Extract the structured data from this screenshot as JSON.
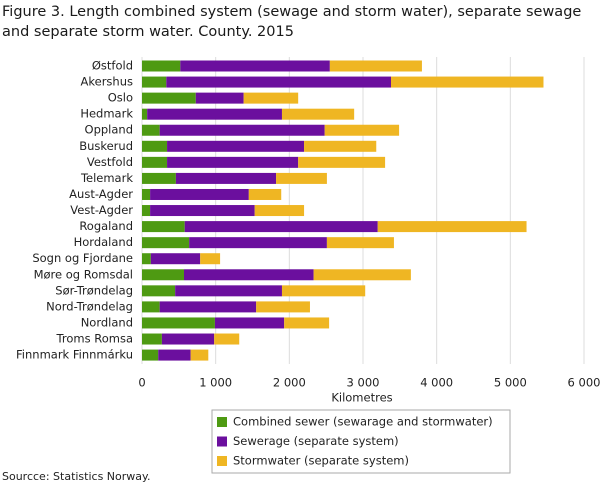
{
  "chart_data": {
    "type": "stacked-bar-horizontal",
    "title": "Figure 3. Length combined system (sewage and storm water), separate sewage and separate storm water. County. 2015",
    "categories": [
      "Østfold",
      "Akershus",
      "Oslo",
      "Hedmark",
      "Oppland",
      "Buskerud",
      "Vestfold",
      "Telemark",
      "Aust-Agder",
      "Vest-Agder",
      "Rogaland",
      "Hordaland",
      "Sogn og Fjordane",
      "Møre og Romsdal",
      "Sør-Trøndelag",
      "Nord-Trøndelag",
      "Nordland",
      "Troms Romsa",
      "Finnmark Finnmárku"
    ],
    "series": [
      {
        "name": "Combined sewer (sewarage and stormwater)",
        "color": "#4e9a12",
        "values": [
          520,
          330,
          730,
          70,
          240,
          340,
          340,
          460,
          110,
          110,
          580,
          640,
          120,
          570,
          450,
          240,
          990,
          270,
          220
        ]
      },
      {
        "name": "Sewerage (separate system)",
        "color": "#6b0f9e",
        "values": [
          2030,
          3050,
          650,
          1830,
          2240,
          1860,
          1780,
          1360,
          1340,
          1420,
          2620,
          1870,
          670,
          1760,
          1450,
          1310,
          940,
          710,
          440
        ]
      },
      {
        "name": "Stormwater (separate system)",
        "color": "#efb623",
        "values": [
          1250,
          2070,
          740,
          980,
          1010,
          980,
          1180,
          690,
          440,
          670,
          2020,
          910,
          270,
          1320,
          1130,
          730,
          610,
          340,
          240
        ]
      }
    ],
    "xlabel": "Kilometres",
    "xlim": [
      0,
      6000
    ],
    "xticks": [
      0,
      {
        "value": 1000,
        "label": "1 000"
      },
      {
        "value": 2000,
        "label": "2 000"
      },
      {
        "value": 3000,
        "label": "3 000"
      },
      {
        "value": 4000,
        "label": "4 000"
      },
      {
        "value": 5000,
        "label": "5 000"
      },
      {
        "value": 6000,
        "label": "6 000"
      }
    ],
    "grid": true,
    "legend": "bottom",
    "source": "Sourcce: Statistics Norway."
  }
}
